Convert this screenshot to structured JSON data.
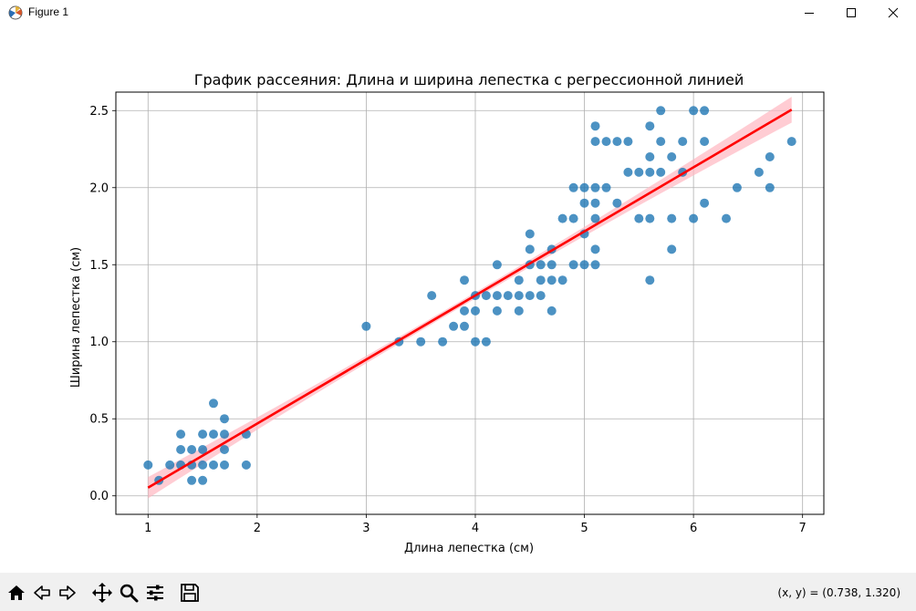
{
  "window": {
    "title": "Figure 1"
  },
  "toolbar": {
    "tools": [
      "home-icon",
      "back-icon",
      "forward-icon",
      "pan-icon",
      "zoom-icon",
      "configure-icon",
      "save-icon"
    ],
    "coords": "(x, y) = (0.738, 1.320)"
  },
  "colors": {
    "points": "#1f77b4",
    "line": "#ff0000",
    "band": "#ffb6c1"
  },
  "chart_data": {
    "type": "scatter",
    "title": "График рассеяния: Длина и ширина лепестка с регрессионной линией",
    "xlabel": "Длина лепестка (см)",
    "ylabel": "Ширина лепестка (см)",
    "xlim": [
      0.705,
      7.195
    ],
    "ylim": [
      -0.12,
      2.62
    ],
    "xticks": [
      1,
      2,
      3,
      4,
      5,
      6,
      7
    ],
    "yticks": [
      0.0,
      0.5,
      1.0,
      1.5,
      2.0,
      2.5
    ],
    "grid": true,
    "points": [
      [
        1.0,
        0.2
      ],
      [
        1.1,
        0.1
      ],
      [
        1.2,
        0.2
      ],
      [
        1.3,
        0.2
      ],
      [
        1.3,
        0.3
      ],
      [
        1.3,
        0.4
      ],
      [
        1.4,
        0.1
      ],
      [
        1.4,
        0.2
      ],
      [
        1.4,
        0.3
      ],
      [
        1.5,
        0.1
      ],
      [
        1.5,
        0.2
      ],
      [
        1.5,
        0.3
      ],
      [
        1.5,
        0.4
      ],
      [
        1.6,
        0.2
      ],
      [
        1.6,
        0.4
      ],
      [
        1.6,
        0.6
      ],
      [
        1.7,
        0.2
      ],
      [
        1.7,
        0.3
      ],
      [
        1.7,
        0.4
      ],
      [
        1.7,
        0.5
      ],
      [
        1.9,
        0.2
      ],
      [
        1.9,
        0.4
      ],
      [
        3.0,
        1.1
      ],
      [
        3.3,
        1.0
      ],
      [
        3.5,
        1.0
      ],
      [
        3.6,
        1.3
      ],
      [
        3.7,
        1.0
      ],
      [
        3.8,
        1.1
      ],
      [
        3.9,
        1.1
      ],
      [
        3.9,
        1.2
      ],
      [
        3.9,
        1.4
      ],
      [
        4.0,
        1.0
      ],
      [
        4.0,
        1.2
      ],
      [
        4.0,
        1.3
      ],
      [
        4.1,
        1.0
      ],
      [
        4.1,
        1.3
      ],
      [
        4.2,
        1.2
      ],
      [
        4.2,
        1.3
      ],
      [
        4.2,
        1.5
      ],
      [
        4.3,
        1.3
      ],
      [
        4.4,
        1.2
      ],
      [
        4.4,
        1.3
      ],
      [
        4.4,
        1.4
      ],
      [
        4.5,
        1.3
      ],
      [
        4.5,
        1.5
      ],
      [
        4.5,
        1.6
      ],
      [
        4.5,
        1.7
      ],
      [
        4.6,
        1.3
      ],
      [
        4.6,
        1.4
      ],
      [
        4.6,
        1.5
      ],
      [
        4.7,
        1.2
      ],
      [
        4.7,
        1.4
      ],
      [
        4.7,
        1.5
      ],
      [
        4.7,
        1.6
      ],
      [
        4.8,
        1.4
      ],
      [
        4.8,
        1.8
      ],
      [
        4.9,
        1.5
      ],
      [
        4.9,
        1.8
      ],
      [
        4.9,
        2.0
      ],
      [
        5.0,
        1.5
      ],
      [
        5.0,
        1.7
      ],
      [
        5.0,
        1.9
      ],
      [
        5.0,
        2.0
      ],
      [
        5.1,
        1.5
      ],
      [
        5.1,
        1.6
      ],
      [
        5.1,
        1.8
      ],
      [
        5.1,
        1.9
      ],
      [
        5.1,
        2.0
      ],
      [
        5.1,
        2.3
      ],
      [
        5.1,
        2.4
      ],
      [
        5.2,
        2.0
      ],
      [
        5.2,
        2.3
      ],
      [
        5.3,
        1.9
      ],
      [
        5.3,
        2.3
      ],
      [
        5.4,
        2.1
      ],
      [
        5.4,
        2.3
      ],
      [
        5.5,
        1.8
      ],
      [
        5.5,
        2.1
      ],
      [
        5.6,
        1.4
      ],
      [
        5.6,
        1.8
      ],
      [
        5.6,
        2.1
      ],
      [
        5.6,
        2.2
      ],
      [
        5.6,
        2.4
      ],
      [
        5.7,
        2.1
      ],
      [
        5.7,
        2.3
      ],
      [
        5.7,
        2.5
      ],
      [
        5.8,
        1.6
      ],
      [
        5.8,
        1.8
      ],
      [
        5.8,
        2.2
      ],
      [
        5.9,
        2.1
      ],
      [
        5.9,
        2.3
      ],
      [
        6.0,
        1.8
      ],
      [
        6.0,
        2.5
      ],
      [
        6.1,
        1.9
      ],
      [
        6.1,
        2.3
      ],
      [
        6.1,
        2.5
      ],
      [
        6.3,
        1.8
      ],
      [
        6.4,
        2.0
      ],
      [
        6.6,
        2.1
      ],
      [
        6.7,
        2.0
      ],
      [
        6.7,
        2.2
      ],
      [
        6.9,
        2.3
      ]
    ],
    "regression": {
      "slope": 0.4158,
      "intercept": -0.363,
      "x_range": [
        1.0,
        6.9
      ]
    }
  }
}
